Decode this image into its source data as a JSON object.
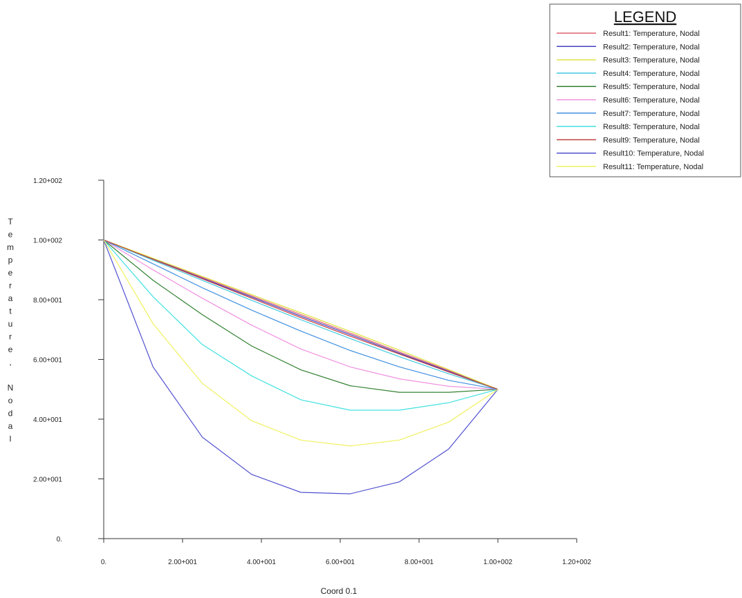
{
  "chart_data": {
    "type": "line",
    "title": "",
    "xlabel": "Coord 0.1",
    "ylabel": "Temperature, Nodal",
    "xlim": [
      0,
      120
    ],
    "ylim": [
      0,
      120
    ],
    "x_ticks": [
      0,
      20,
      40,
      60,
      80,
      100,
      120
    ],
    "x_tick_labels": [
      "0.",
      "2.00+001",
      "4.00+001",
      "6.00+001",
      "8.00+001",
      "1.00+002",
      "1.20+002"
    ],
    "y_ticks": [
      0,
      20,
      40,
      60,
      80,
      100,
      120
    ],
    "y_tick_labels": [
      "0.",
      "2.00+001",
      "4.00+001",
      "6.00+001",
      "8.00+001",
      "1.00+002",
      "1.20+002"
    ],
    "grid": false,
    "legend_title": "LEGEND",
    "legend_position": "top-right",
    "x": [
      0,
      12.5,
      25,
      37.5,
      50,
      62.5,
      75,
      87.5,
      100
    ],
    "series": [
      {
        "name": "Result1: Temperature, Nodal",
        "color": "#e06070",
        "values": [
          100,
          93.8,
          87.5,
          81.3,
          75.0,
          68.8,
          62.5,
          56.3,
          50
        ]
      },
      {
        "name": "Result2: Temperature, Nodal",
        "color": "#4040c0",
        "values": [
          100,
          93.6,
          87.2,
          80.9,
          74.5,
          68.3,
          62.1,
          56.0,
          50
        ]
      },
      {
        "name": "Result3: Temperature, Nodal",
        "color": "#e0e040",
        "values": [
          100,
          93.9,
          87.8,
          81.7,
          75.6,
          69.4,
          63.1,
          56.6,
          50
        ]
      },
      {
        "name": "Result4: Temperature, Nodal",
        "color": "#40c8e0",
        "values": [
          100,
          93.2,
          86.5,
          79.8,
          73.3,
          67.0,
          60.9,
          55.2,
          50
        ]
      },
      {
        "name": "Result5: Temperature, Nodal",
        "color": "#308030",
        "values": [
          100,
          86.5,
          75.0,
          64.5,
          56.5,
          51.2,
          49.0,
          49.0,
          50
        ]
      },
      {
        "name": "Result6: Temperature, Nodal",
        "color": "#f090e0",
        "values": [
          100,
          90.0,
          80.5,
          71.5,
          63.5,
          57.5,
          53.5,
          51.0,
          50
        ]
      },
      {
        "name": "Result7: Temperature, Nodal",
        "color": "#4090e0",
        "values": [
          100,
          92.0,
          84.0,
          76.5,
          69.5,
          63.0,
          57.5,
          53.0,
          50
        ]
      },
      {
        "name": "Result8: Temperature, Nodal",
        "color": "#40e0e0",
        "values": [
          100,
          81.0,
          65.0,
          54.5,
          46.5,
          43.0,
          43.0,
          45.5,
          50
        ]
      },
      {
        "name": "Result9: Temperature, Nodal",
        "color": "#c04040",
        "values": [
          100,
          93.5,
          87.0,
          80.5,
          74.0,
          67.8,
          61.8,
          55.8,
          50
        ]
      },
      {
        "name": "Result10: Temperature, Nodal",
        "color": "#5050d0",
        "values": [
          100,
          57.5,
          34.0,
          21.5,
          15.5,
          15.0,
          19.0,
          30.0,
          50
        ]
      },
      {
        "name": "Result11: Temperature, Nodal",
        "color": "#f0f060",
        "values": [
          100,
          72.0,
          52.0,
          39.5,
          33.0,
          31.0,
          33.0,
          39.0,
          50
        ]
      }
    ]
  }
}
